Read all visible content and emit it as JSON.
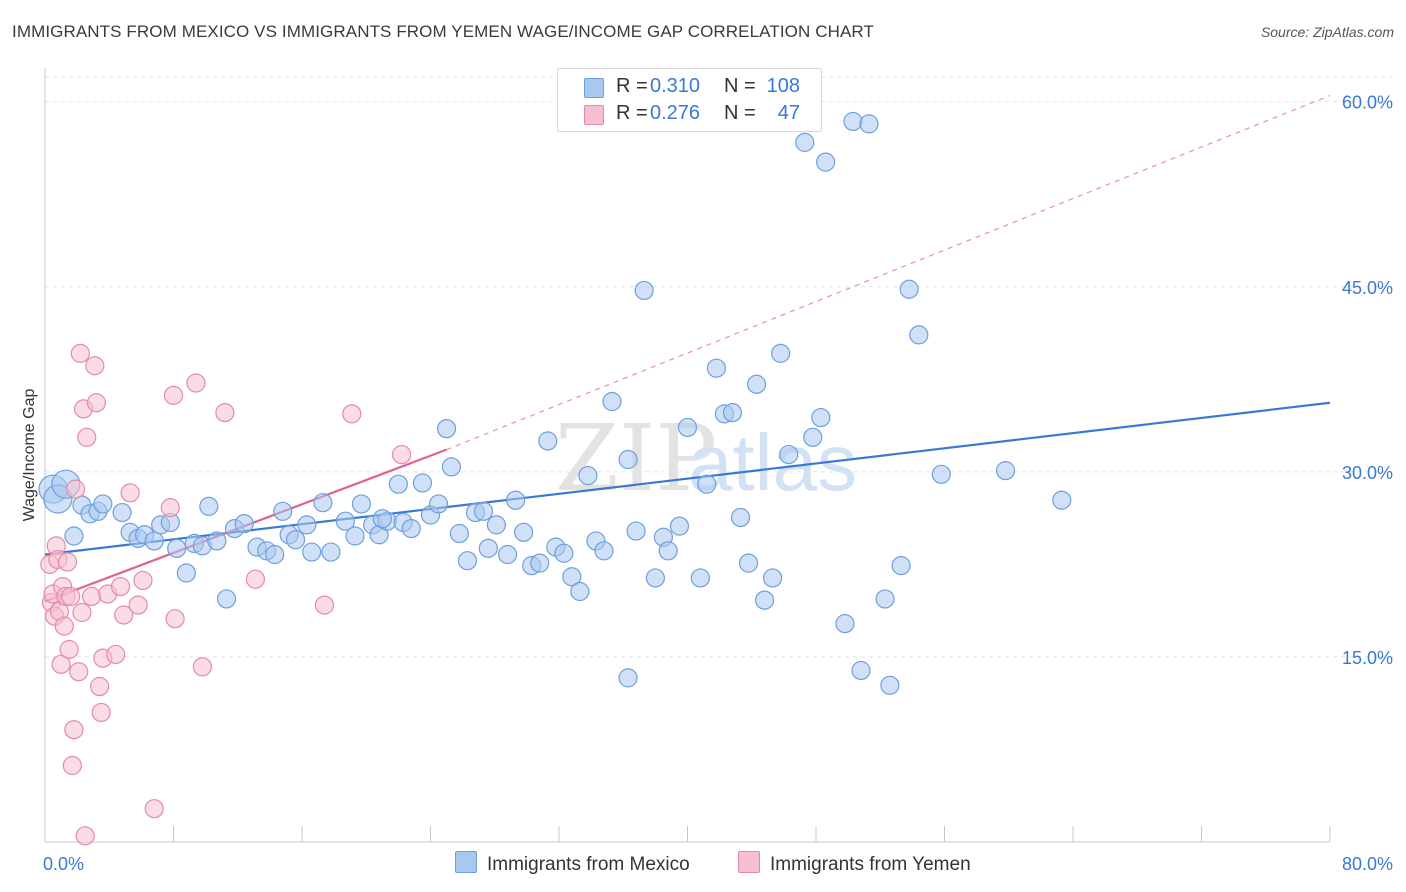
{
  "title": "IMMIGRANTS FROM MEXICO VS IMMIGRANTS FROM YEMEN WAGE/INCOME GAP CORRELATION CHART",
  "source": "Source: ZipAtlas.com",
  "watermark": {
    "zip": "ZIP",
    "atlas": "atlas"
  },
  "legend": {
    "rows": [
      {
        "r_label": "R =",
        "r_value": "0.310",
        "n_label": "N =",
        "n_value": "108",
        "color": "#a9c8f0",
        "border": "#6f9fdc"
      },
      {
        "r_label": "R =",
        "r_value": "0.276",
        "n_label": "N =",
        "n_value": "47",
        "color": "#f6bfd0",
        "border": "#e68aa9"
      }
    ]
  },
  "bottom_legend": [
    {
      "label": "Immigrants from Mexico",
      "color": "#a9c8f0",
      "border": "#6f9fdc"
    },
    {
      "label": "Immigrants from Yemen",
      "color": "#f6bfd0",
      "border": "#e68aa9"
    }
  ],
  "chart_data": {
    "type": "scatter",
    "ylabel": "Wage/Income Gap",
    "xlim": [
      0,
      80
    ],
    "ylim": [
      0,
      62
    ],
    "x_tick_labels": [
      "0.0%",
      "80.0%"
    ],
    "y_ticks": [
      {
        "value": 15,
        "label": "15.0%"
      },
      {
        "value": 30,
        "label": "30.0%"
      },
      {
        "value": 45,
        "label": "45.0%"
      },
      {
        "value": 60,
        "label": "60.0%"
      }
    ],
    "colors": {
      "mexico": "#3a78d6",
      "yemen": "#e0628e",
      "mexico_fill": "#a9c8f0",
      "yemen_fill": "#f6bfd0"
    },
    "series": [
      {
        "name": "Immigrants from Mexico",
        "trend": {
          "x": [
            0,
            80
          ],
          "y": [
            23.3,
            35.6
          ],
          "style": "solid"
        },
        "points": [
          [
            0.5,
            28.6
          ],
          [
            0.8,
            27.8
          ],
          [
            1.3,
            29.0
          ],
          [
            1.8,
            24.8
          ],
          [
            2.3,
            27.3
          ],
          [
            2.8,
            26.6
          ],
          [
            3.3,
            26.8
          ],
          [
            3.6,
            27.4
          ],
          [
            4.8,
            26.7
          ],
          [
            5.3,
            25.1
          ],
          [
            5.8,
            24.6
          ],
          [
            6.2,
            24.9
          ],
          [
            6.8,
            24.4
          ],
          [
            7.2,
            25.7
          ],
          [
            7.8,
            25.9
          ],
          [
            8.2,
            23.8
          ],
          [
            8.8,
            21.8
          ],
          [
            9.3,
            24.2
          ],
          [
            9.8,
            24.0
          ],
          [
            10.2,
            27.2
          ],
          [
            10.7,
            24.4
          ],
          [
            11.3,
            19.7
          ],
          [
            11.8,
            25.4
          ],
          [
            12.4,
            25.8
          ],
          [
            13.2,
            23.9
          ],
          [
            13.8,
            23.6
          ],
          [
            14.3,
            23.3
          ],
          [
            14.8,
            26.8
          ],
          [
            15.2,
            24.9
          ],
          [
            16.3,
            25.7
          ],
          [
            16.6,
            23.5
          ],
          [
            17.3,
            27.5
          ],
          [
            17.8,
            23.5
          ],
          [
            18.7,
            26.0
          ],
          [
            19.3,
            24.8
          ],
          [
            19.7,
            27.4
          ],
          [
            20.4,
            25.7
          ],
          [
            20.8,
            24.9
          ],
          [
            21.3,
            26.0
          ],
          [
            22.0,
            29.0
          ],
          [
            22.3,
            25.9
          ],
          [
            22.8,
            25.4
          ],
          [
            23.5,
            29.1
          ],
          [
            24.0,
            26.5
          ],
          [
            24.5,
            27.4
          ],
          [
            25.0,
            33.5
          ],
          [
            25.3,
            30.4
          ],
          [
            25.8,
            25.0
          ],
          [
            26.3,
            22.8
          ],
          [
            26.8,
            26.7
          ],
          [
            27.3,
            26.8
          ],
          [
            27.6,
            23.8
          ],
          [
            28.1,
            25.7
          ],
          [
            28.8,
            23.3
          ],
          [
            29.3,
            27.7
          ],
          [
            29.8,
            25.1
          ],
          [
            30.3,
            22.4
          ],
          [
            30.8,
            22.6
          ],
          [
            31.3,
            32.5
          ],
          [
            31.8,
            23.9
          ],
          [
            32.3,
            23.4
          ],
          [
            32.8,
            21.5
          ],
          [
            33.3,
            20.3
          ],
          [
            33.8,
            29.7
          ],
          [
            34.3,
            24.4
          ],
          [
            34.8,
            23.6
          ],
          [
            35.3,
            35.7
          ],
          [
            36.3,
            31.0
          ],
          [
            36.8,
            25.2
          ],
          [
            37.3,
            44.7
          ],
          [
            38.0,
            21.4
          ],
          [
            38.5,
            24.7
          ],
          [
            38.8,
            23.6
          ],
          [
            39.5,
            25.6
          ],
          [
            40.0,
            33.6
          ],
          [
            40.8,
            21.4
          ],
          [
            41.2,
            29.0
          ],
          [
            41.8,
            38.4
          ],
          [
            42.3,
            34.7
          ],
          [
            42.8,
            34.8
          ],
          [
            43.3,
            26.3
          ],
          [
            43.8,
            22.6
          ],
          [
            44.3,
            37.1
          ],
          [
            44.8,
            19.6
          ],
          [
            45.3,
            21.4
          ],
          [
            45.8,
            39.6
          ],
          [
            46.3,
            31.4
          ],
          [
            47.3,
            56.7
          ],
          [
            47.8,
            32.8
          ],
          [
            48.3,
            34.4
          ],
          [
            48.6,
            55.1
          ],
          [
            49.8,
            17.7
          ],
          [
            50.3,
            58.4
          ],
          [
            50.8,
            13.9
          ],
          [
            51.3,
            58.2
          ],
          [
            52.3,
            19.7
          ],
          [
            52.6,
            12.7
          ],
          [
            53.3,
            22.4
          ],
          [
            53.8,
            44.8
          ],
          [
            54.4,
            41.1
          ],
          [
            55.8,
            29.8
          ],
          [
            59.8,
            30.1
          ],
          [
            63.3,
            27.7
          ],
          [
            36.3,
            13.3
          ],
          [
            21.0,
            26.2
          ],
          [
            15.6,
            24.5
          ]
        ]
      },
      {
        "name": "Immigrants from Yemen",
        "trend": {
          "x": [
            0,
            25
          ],
          "y": [
            19.5,
            31.8
          ],
          "style": "solid",
          "extension": {
            "x": [
              25,
              80
            ],
            "y": [
              31.8,
              60.5
            ],
            "style": "dashed"
          }
        },
        "points": [
          [
            0.3,
            22.5
          ],
          [
            0.4,
            19.4
          ],
          [
            0.5,
            20.1
          ],
          [
            0.6,
            18.3
          ],
          [
            0.7,
            24.0
          ],
          [
            0.8,
            22.9
          ],
          [
            0.9,
            18.7
          ],
          [
            1.0,
            14.4
          ],
          [
            1.1,
            20.7
          ],
          [
            1.2,
            17.5
          ],
          [
            1.3,
            19.9
          ],
          [
            1.4,
            22.7
          ],
          [
            1.5,
            15.6
          ],
          [
            1.6,
            19.9
          ],
          [
            1.7,
            6.2
          ],
          [
            1.8,
            9.1
          ],
          [
            1.9,
            28.6
          ],
          [
            2.1,
            13.8
          ],
          [
            2.2,
            39.6
          ],
          [
            2.3,
            18.6
          ],
          [
            2.4,
            35.1
          ],
          [
            2.5,
            0.5
          ],
          [
            2.6,
            32.8
          ],
          [
            2.9,
            19.9
          ],
          [
            3.1,
            38.6
          ],
          [
            3.2,
            35.6
          ],
          [
            3.4,
            12.6
          ],
          [
            3.5,
            10.5
          ],
          [
            3.6,
            14.9
          ],
          [
            3.9,
            20.1
          ],
          [
            4.4,
            15.2
          ],
          [
            4.7,
            20.7
          ],
          [
            4.9,
            18.4
          ],
          [
            5.3,
            28.3
          ],
          [
            5.8,
            19.2
          ],
          [
            6.1,
            21.2
          ],
          [
            6.8,
            2.7
          ],
          [
            7.8,
            27.1
          ],
          [
            8.0,
            36.2
          ],
          [
            8.1,
            18.1
          ],
          [
            9.4,
            37.2
          ],
          [
            9.8,
            14.2
          ],
          [
            11.2,
            34.8
          ],
          [
            13.1,
            21.3
          ],
          [
            17.4,
            19.2
          ],
          [
            19.1,
            34.7
          ],
          [
            22.2,
            31.4
          ]
        ]
      }
    ]
  }
}
